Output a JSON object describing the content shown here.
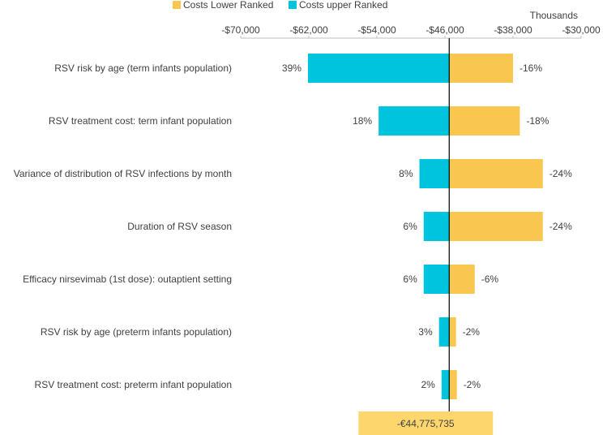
{
  "chart_data": {
    "type": "bar",
    "subtype": "tornado",
    "axis_unit_label": "Thousands",
    "x_ticks": [
      "-$70,000",
      "-$62,000",
      "-$54,000",
      "-$46,000",
      "-$38,000",
      "-$30,000"
    ],
    "xlim": [
      -70000,
      -30000
    ],
    "base_value": -45500,
    "legend": {
      "position": "top",
      "entries": [
        {
          "name": "Costs Lower Ranked",
          "color": "#F9C74F"
        },
        {
          "name": "Costs upper Ranked",
          "color": "#00C4DE"
        }
      ]
    },
    "categories": [
      "RSV risk by age (term infants population)",
      "RSV treatment cost: term infant population",
      "Variance of distribution of RSV infections by month",
      "Duration of RSV season",
      "Efficacy nirsevimab (1st dose): outaptient setting",
      "RSV risk by age (preterm infants population)",
      "RSV treatment cost: preterm infant population"
    ],
    "series": [
      {
        "name": "Costs upper Ranked",
        "color": "#00C4DE",
        "values": [
          -62100,
          -53800,
          -49000,
          -48500,
          -48500,
          -46700,
          -46400
        ],
        "labels": [
          "39%",
          "18%",
          "8%",
          "6%",
          "6%",
          "3%",
          "2%"
        ]
      },
      {
        "name": "Costs Lower Ranked",
        "color": "#F9C74F",
        "values": [
          -38000,
          -37200,
          -34500,
          -34500,
          -42500,
          -44700,
          -44600
        ],
        "labels": [
          "-16%",
          "-18%",
          "-24%",
          "-24%",
          "-6%",
          "-2%",
          "-2%"
        ]
      }
    ],
    "base_box_label": "-€44,775,735",
    "base_box_color": "#FDD76E",
    "axis_line_color": "#000000"
  }
}
